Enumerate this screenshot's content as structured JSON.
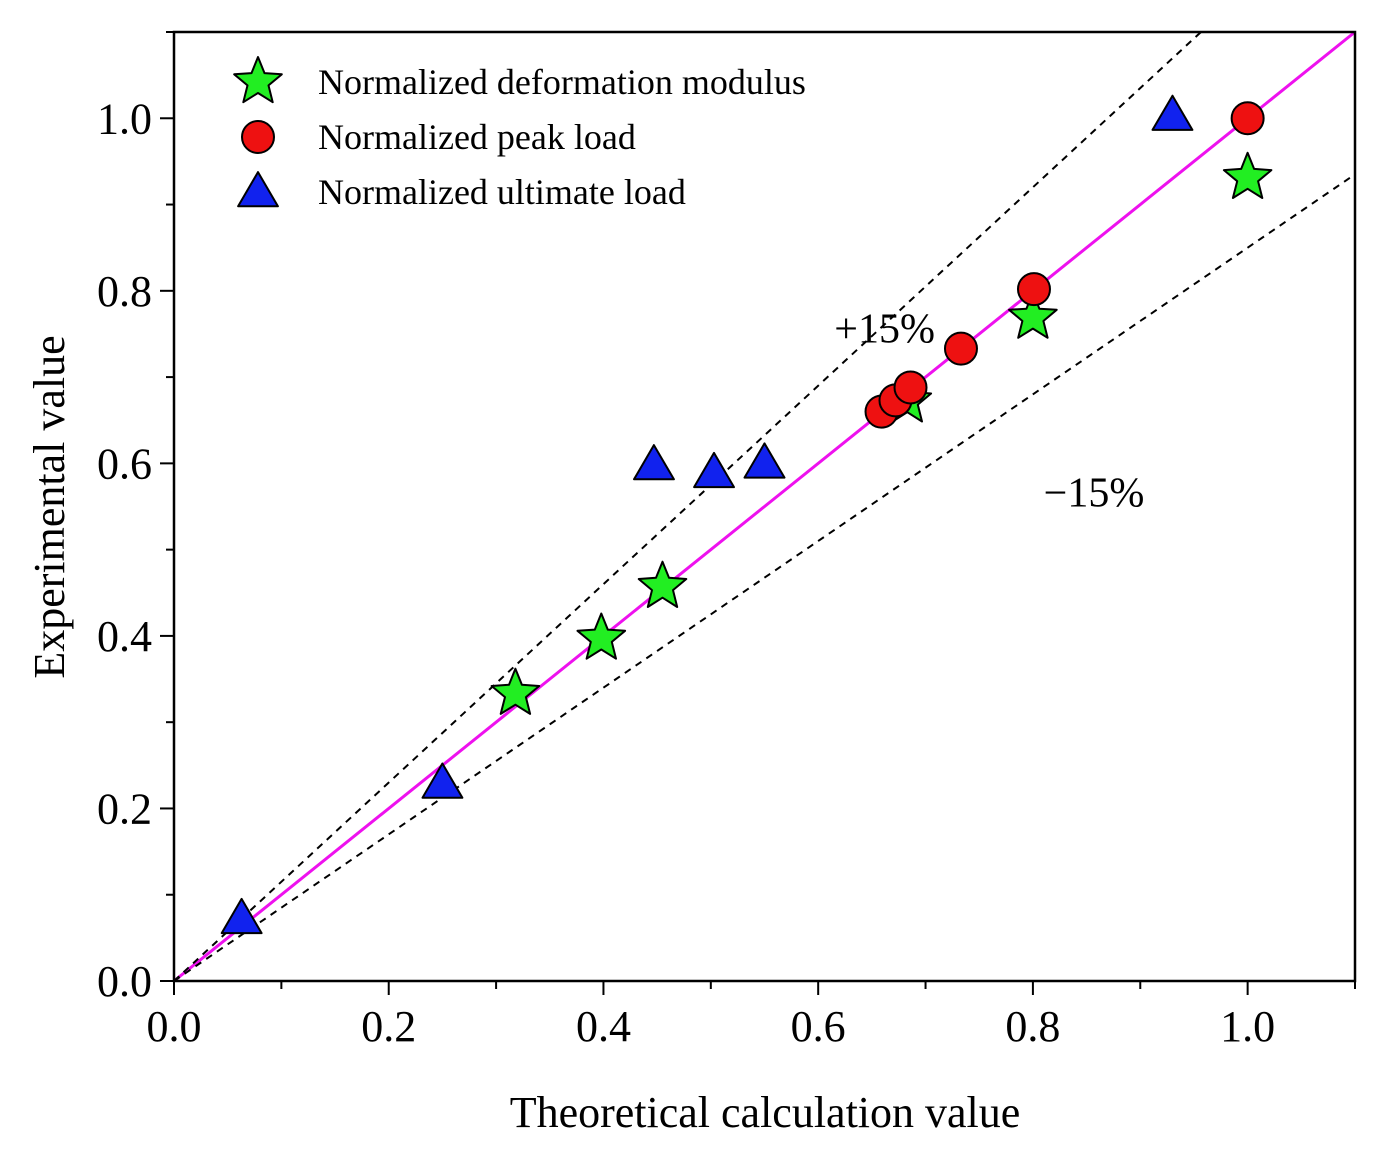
{
  "chart_data": {
    "type": "scatter",
    "title": "",
    "xlabel": "Theoretical calculation value",
    "ylabel": "Experimental value",
    "xlim": [
      0.0,
      1.1
    ],
    "ylim": [
      0.0,
      1.1
    ],
    "xticks": [
      "0.0",
      "0.2",
      "0.4",
      "0.6",
      "0.8",
      "1.0"
    ],
    "yticks": [
      "0.0",
      "0.2",
      "0.4",
      "0.6",
      "0.8",
      "1.0"
    ],
    "legend_position": "top-left",
    "series": [
      {
        "name": "Normalized deformation modulus",
        "marker": "star",
        "color": "#22ee22",
        "points": [
          [
            0.318,
            0.333
          ],
          [
            0.398,
            0.397
          ],
          [
            0.455,
            0.457
          ],
          [
            0.683,
            0.672
          ],
          [
            0.8,
            0.769
          ],
          [
            1.0,
            0.931
          ]
        ]
      },
      {
        "name": "Normalized peak load",
        "marker": "circle",
        "color": "#ee1111",
        "points": [
          [
            0.659,
            0.66
          ],
          [
            0.672,
            0.673
          ],
          [
            0.686,
            0.688
          ],
          [
            0.733,
            0.733
          ],
          [
            0.801,
            0.802
          ],
          [
            1.0,
            1.0
          ]
        ]
      },
      {
        "name": "Normalized ultimate load",
        "marker": "triangle",
        "color": "#1122ee",
        "points": [
          [
            0.063,
            0.072
          ],
          [
            0.25,
            0.229
          ],
          [
            0.447,
            0.598
          ],
          [
            0.503,
            0.589
          ],
          [
            0.55,
            0.6
          ],
          [
            0.93,
            1.003
          ]
        ]
      }
    ],
    "reference_lines": [
      {
        "name": "y = x",
        "slope": 1.0,
        "style": "solid",
        "color": "#ee11ee"
      },
      {
        "name": "+15%",
        "slope": 1.15,
        "style": "dashed",
        "color": "#000000"
      },
      {
        "name": "-15%",
        "slope": 0.85,
        "style": "dashed",
        "color": "#000000"
      }
    ],
    "annotations": [
      {
        "text": "+15%",
        "x": 0.615,
        "y": 0.74
      },
      {
        "text": "−15%",
        "x": 0.81,
        "y": 0.55
      }
    ]
  }
}
